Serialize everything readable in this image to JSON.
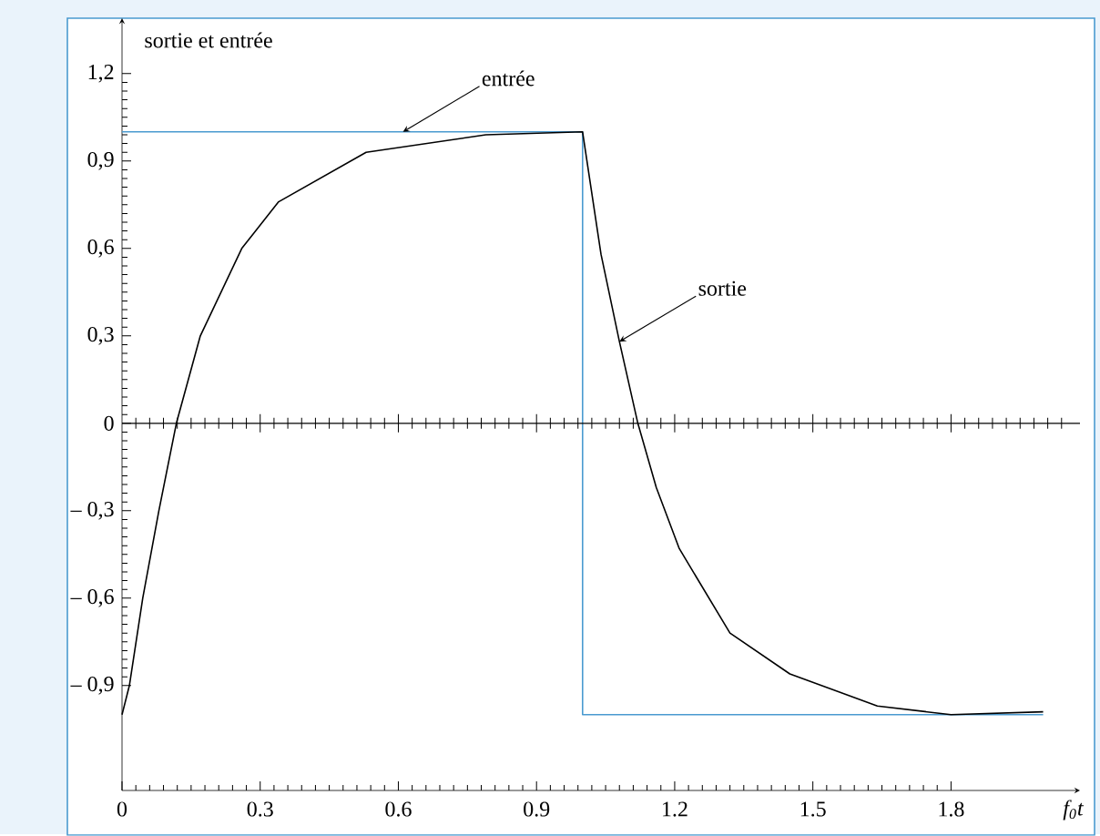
{
  "chart_data": {
    "type": "line",
    "xlabel": "f$_{0}$t",
    "xlim": [
      0,
      2.08
    ],
    "ylim": [
      -1.26,
      1.39
    ],
    "xticks": [
      0,
      0.3,
      0.6,
      0.9,
      1.2,
      1.5,
      1.8
    ],
    "yticks": [
      {
        "value": -0.9,
        "label": "– 0,9"
      },
      {
        "value": -0.6,
        "label": "– 0,6"
      },
      {
        "value": -0.3,
        "label": "– 0,3"
      },
      0,
      {
        "value": 0.3,
        "label": "0,3"
      },
      {
        "value": 0.6,
        "label": "0,6"
      },
      {
        "value": 0.9,
        "label": "0,9"
      },
      {
        "value": 1.2,
        "label": "1,2"
      }
    ],
    "ref_lines": [
      {
        "axis": "y",
        "value": 0,
        "color": "#000000"
      }
    ],
    "annotations": [
      "sortie et entrée",
      {
        "text": "entrée",
        "x": 0.61,
        "y": 1.0
      },
      {
        "text": "sortie",
        "x": 1.08,
        "y": 0.28
      }
    ],
    "series": [
      {
        "color": "#4a9ad0",
        "x": [
          0,
          1,
          1,
          2
        ],
        "values": [
          1,
          1,
          -1,
          -1
        ]
      },
      {
        "color": "#000000",
        "x": [
          0,
          0.016,
          0.045,
          0.08,
          0.118,
          0.17,
          0.26,
          0.34,
          0.53,
          0.79,
          1.0,
          1.04,
          1.08,
          1.12,
          1.16,
          1.21,
          1.32,
          1.45,
          1.64,
          1.8,
          2.0
        ],
        "values": [
          -1.0,
          -0.9,
          -0.6,
          -0.3,
          0,
          0.3,
          0.6,
          0.76,
          0.93,
          0.99,
          1.0,
          0.58,
          0.28,
          0,
          -0.22,
          -0.43,
          -0.72,
          -0.86,
          -0.97,
          -1.0,
          -0.99
        ]
      }
    ]
  }
}
